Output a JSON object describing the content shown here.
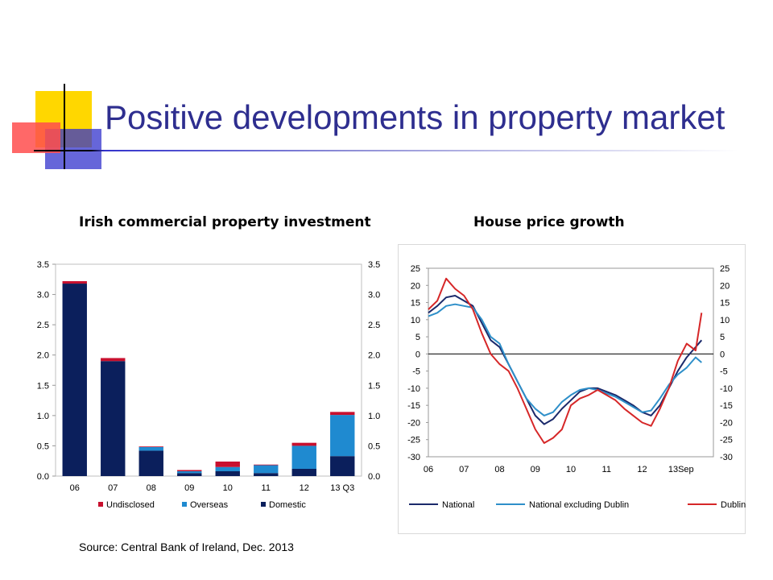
{
  "slide": {
    "title": "Positive developments in property market",
    "source": "Source: Central Bank of Ireland, Dec. 2013"
  },
  "colors": {
    "title": "#2e2e8f",
    "deco_yellow": "#ffd700",
    "deco_red": "#ff4d4d",
    "deco_blue": "#3333cc",
    "undisclosed": "#c8102e",
    "overseas": "#1f8ad0",
    "domestic": "#0b1f5c",
    "national": "#1b2a6b",
    "national_excl_dublin": "#2e8fc9",
    "dublin": "#d62728"
  },
  "chart_data": [
    {
      "type": "bar",
      "stacked": true,
      "title": "Irish commercial property investment",
      "categories": [
        "06",
        "07",
        "08",
        "09",
        "10",
        "11",
        "12",
        "13 Q3"
      ],
      "series": [
        {
          "name": "Domestic",
          "values": [
            3.18,
            1.9,
            0.42,
            0.05,
            0.08,
            0.05,
            0.12,
            0.33
          ]
        },
        {
          "name": "Overseas",
          "values": [
            0.0,
            0.0,
            0.06,
            0.03,
            0.07,
            0.13,
            0.38,
            0.68
          ]
        },
        {
          "name": "Undisclosed",
          "values": [
            0.04,
            0.05,
            0.01,
            0.02,
            0.09,
            0.01,
            0.05,
            0.05
          ]
        }
      ],
      "legend_order": [
        "Undisclosed",
        "Overseas",
        "Domestic"
      ],
      "ylim": [
        0,
        3.5
      ],
      "yticks": [
        "3.5",
        "3.0",
        "2.5",
        "2.0",
        "1.5",
        "1.0",
        "0.5",
        "0.0"
      ],
      "legend_position": "bottom",
      "grid": false
    },
    {
      "type": "line",
      "title": "House price growth",
      "ylim": [
        -30,
        25
      ],
      "yticks": [
        "25",
        "20",
        "15",
        "10",
        "5",
        "0",
        "-5",
        "-10",
        "-15",
        "-20",
        "-25",
        "-30"
      ],
      "xticks": [
        "06",
        "07",
        "08",
        "09",
        "10",
        "11",
        "12",
        "13Sep"
      ],
      "legend_position": "bottom",
      "grid": false,
      "x": [
        "2006-01",
        "2006-04",
        "2006-07",
        "2006-10",
        "2007-01",
        "2007-04",
        "2007-07",
        "2007-10",
        "2008-01",
        "2008-04",
        "2008-07",
        "2008-10",
        "2009-01",
        "2009-04",
        "2009-07",
        "2009-10",
        "2010-01",
        "2010-04",
        "2010-07",
        "2010-10",
        "2011-01",
        "2011-04",
        "2011-07",
        "2011-10",
        "2012-01",
        "2012-04",
        "2012-07",
        "2012-10",
        "2013-01",
        "2013-04",
        "2013-07",
        "2013-09"
      ],
      "series": [
        {
          "name": "National",
          "values": [
            12,
            14,
            16.5,
            17,
            15.5,
            14,
            9,
            4,
            2,
            -3,
            -8,
            -13,
            -18,
            -20.5,
            -19,
            -16,
            -13.5,
            -11,
            -10,
            -10,
            -11,
            -12,
            -13.5,
            -15,
            -17,
            -18,
            -15,
            -10,
            -5,
            -1,
            2,
            4
          ]
        },
        {
          "name": "National excluding Dublin",
          "values": [
            11,
            12,
            14,
            14.5,
            14,
            13.5,
            10,
            5,
            3,
            -3,
            -8,
            -13,
            -16,
            -18,
            -17,
            -14,
            -12,
            -10.5,
            -10,
            -10.5,
            -11.5,
            -12.5,
            -14,
            -15.5,
            -17,
            -16.5,
            -13,
            -9,
            -6,
            -4,
            -1,
            -2.5
          ]
        },
        {
          "name": "Dublin",
          "values": [
            13,
            15.5,
            22,
            19,
            17,
            13,
            6,
            0,
            -3,
            -5,
            -10,
            -16,
            -22,
            -26,
            -24.5,
            -22,
            -15,
            -13,
            -12,
            -10.5,
            -12,
            -13.5,
            -16,
            -18,
            -20,
            -21,
            -16,
            -10,
            -2,
            3,
            1,
            12
          ]
        }
      ]
    }
  ]
}
